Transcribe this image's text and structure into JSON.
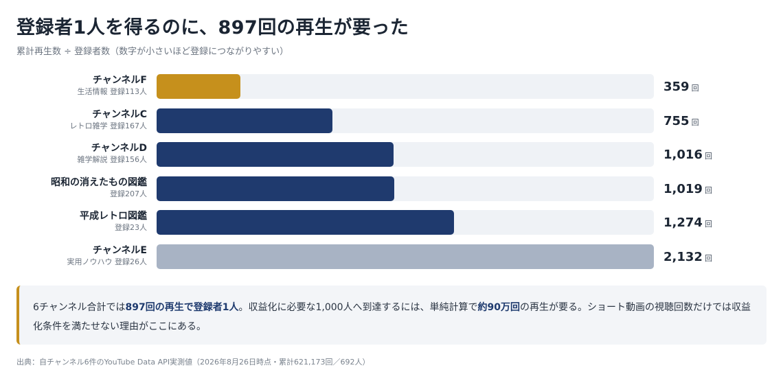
{
  "title": "登録者1人を得るのに、897回の再生が要った",
  "subtitle": "累計再生数 ÷ 登録者数（数字が小さいほど登録につながりやすい）",
  "colors": {
    "highlight": "#c6901c",
    "primary": "#1f3a6e",
    "muted": "#a8b3c4",
    "track": "#eff2f6"
  },
  "chart_data": {
    "type": "bar",
    "orientation": "horizontal",
    "unit": "回",
    "xlim": [
      0,
      2132
    ],
    "categories": [
      "チャンネルF",
      "チャンネルC",
      "チャンネルD",
      "昭和の消えたもの図鑑",
      "平成レトロ図鑑",
      "チャンネルE"
    ],
    "sublabels": [
      "生活情報 登録113人",
      "レトロ雑学 登録167人",
      "雑学解説 登録156人",
      "登録207人",
      "登録23人",
      "実用ノウハウ 登録26人"
    ],
    "values": [
      359,
      755,
      1016,
      1019,
      1274,
      2132
    ],
    "value_labels": [
      "359",
      "755",
      "1,016",
      "1,019",
      "1,274",
      "2,132"
    ],
    "bar_colors": [
      "highlight",
      "primary",
      "primary",
      "primary",
      "primary",
      "muted"
    ]
  },
  "note": {
    "p1": "6チャンネル合計では",
    "b1": "897回の再生で登録者1人",
    "p2": "。収益化に必要な1,000人へ到達するには、単純計算で",
    "b2": "約90万回",
    "p3": "の再生が要る。ショート動画の視聴回数だけでは収益化条件を満たせない理由がここにある。"
  },
  "source": "出典：自チャンネル6件のYouTube Data API実測値（2026年8月26日時点・累計621,173回／692人）"
}
